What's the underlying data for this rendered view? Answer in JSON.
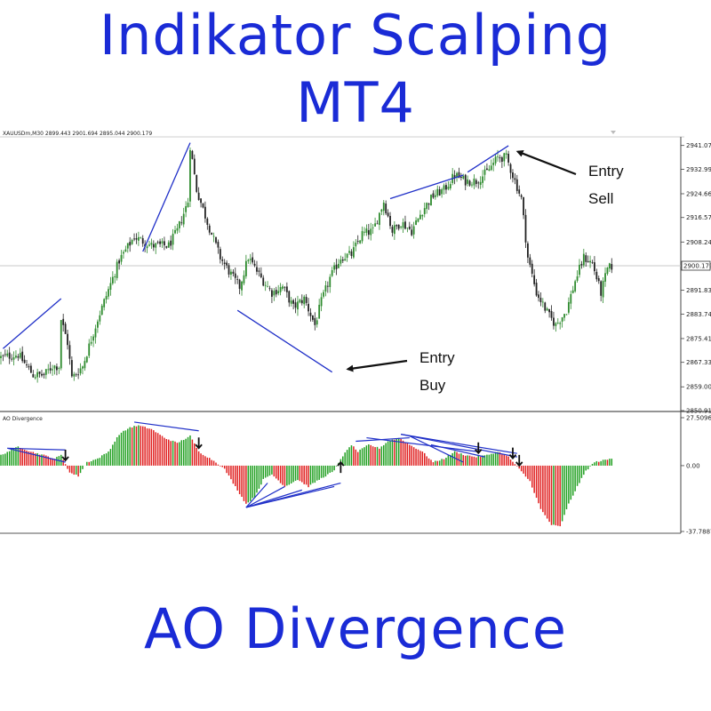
{
  "header": {
    "title_line1": "Indikator Scalping",
    "title_line2": "MT4"
  },
  "footer": {
    "title": "AO Divergence"
  },
  "colors": {
    "title": "#1a2bd6",
    "bull_candle": "#2e8b2e",
    "bear_candle": "#222222",
    "divergence_line": "#2030c8",
    "ao_up": "#22a022",
    "ao_down": "#e02020"
  },
  "chart_data": [
    {
      "type": "candlestick",
      "symbol_header": "XAUUSDm,M30  2899.443 2901.694 2895.044 2900.179",
      "ylim": [
        2850.915,
        2944.0
      ],
      "y_tick_labels": [
        "2941.075",
        "2932.990",
        "2924.660",
        "2916.575",
        "2908.245",
        "2891.830",
        "2883.745",
        "2875.415",
        "2867.330",
        "2859.000",
        "2850.915"
      ],
      "current_price": "2900.179",
      "price_path_anchors": [
        [
          0,
          2869
        ],
        [
          8,
          2870
        ],
        [
          15,
          2863
        ],
        [
          20,
          2863
        ],
        [
          24,
          2866
        ],
        [
          27,
          2866
        ],
        [
          28,
          2882
        ],
        [
          31,
          2874
        ],
        [
          33,
          2862
        ],
        [
          38,
          2866
        ],
        [
          45,
          2882
        ],
        [
          55,
          2902
        ],
        [
          62,
          2910
        ],
        [
          70,
          2907
        ],
        [
          78,
          2907
        ],
        [
          82,
          2912
        ],
        [
          87,
          2922
        ],
        [
          88,
          2941
        ],
        [
          91,
          2926
        ],
        [
          96,
          2915
        ],
        [
          102,
          2903
        ],
        [
          108,
          2896
        ],
        [
          111,
          2893
        ],
        [
          115,
          2903
        ],
        [
          121,
          2896
        ],
        [
          126,
          2891
        ],
        [
          131,
          2893
        ],
        [
          136,
          2886
        ],
        [
          141,
          2889
        ],
        [
          146,
          2880
        ],
        [
          149,
          2888
        ],
        [
          153,
          2896
        ],
        [
          158,
          2903
        ],
        [
          163,
          2904
        ],
        [
          168,
          2911
        ],
        [
          173,
          2912
        ],
        [
          178,
          2922
        ],
        [
          182,
          2912
        ],
        [
          186,
          2915
        ],
        [
          191,
          2912
        ],
        [
          196,
          2919
        ],
        [
          201,
          2924
        ],
        [
          206,
          2926
        ],
        [
          211,
          2931
        ],
        [
          216,
          2929
        ],
        [
          221,
          2929
        ],
        [
          226,
          2932
        ],
        [
          231,
          2937
        ],
        [
          235,
          2937
        ],
        [
          238,
          2931
        ],
        [
          242,
          2923
        ],
        [
          245,
          2903
        ],
        [
          249,
          2891
        ],
        [
          255,
          2883
        ],
        [
          258,
          2880
        ],
        [
          263,
          2885
        ],
        [
          267,
          2895
        ],
        [
          271,
          2903
        ],
        [
          275,
          2901
        ],
        [
          279,
          2891
        ],
        [
          282,
          2899
        ],
        [
          284,
          2900
        ]
      ],
      "divergence_lines": [
        {
          "x": [
            1,
            28
          ],
          "y": [
            2872,
            2889
          ]
        },
        {
          "x": [
            66,
            88
          ],
          "y": [
            2905,
            2942
          ]
        },
        {
          "x": [
            110,
            154
          ],
          "y": [
            2885,
            2864
          ]
        },
        {
          "x": [
            181,
            215
          ],
          "y": [
            2923,
            2931
          ]
        },
        {
          "x": [
            217,
            236
          ],
          "y": [
            2932,
            2941
          ]
        }
      ],
      "annotations": [
        {
          "line1": "Entry",
          "line2": "Sell",
          "target_bar": 237,
          "target_price": 2939
        },
        {
          "line1": "Entry",
          "line2": "Buy",
          "target_bar": 158,
          "target_price": 2865
        }
      ]
    },
    {
      "type": "histogram",
      "indicator_name": "AO Divergence",
      "ylim": [
        -37.7887,
        27.5096
      ],
      "y_tick_labels": [
        "27.5096",
        "0.00",
        "-37.7887"
      ],
      "ao_anchors": [
        [
          0,
          6
        ],
        [
          8,
          11
        ],
        [
          14,
          8
        ],
        [
          20,
          6
        ],
        [
          25,
          4
        ],
        [
          28,
          6
        ],
        [
          32,
          -4
        ],
        [
          36,
          -6
        ],
        [
          40,
          2
        ],
        [
          45,
          4
        ],
        [
          50,
          8
        ],
        [
          55,
          18
        ],
        [
          60,
          22
        ],
        [
          64,
          23
        ],
        [
          70,
          21
        ],
        [
          76,
          16
        ],
        [
          82,
          13
        ],
        [
          88,
          17
        ],
        [
          92,
          8
        ],
        [
          100,
          2
        ],
        [
          104,
          -2
        ],
        [
          110,
          -14
        ],
        [
          114,
          -22
        ],
        [
          118,
          -18
        ],
        [
          122,
          -8
        ],
        [
          126,
          -5
        ],
        [
          132,
          -12
        ],
        [
          138,
          -8
        ],
        [
          143,
          -12
        ],
        [
          148,
          -8
        ],
        [
          155,
          -3
        ],
        [
          158,
          4
        ],
        [
          163,
          12
        ],
        [
          166,
          8
        ],
        [
          171,
          12
        ],
        [
          176,
          10
        ],
        [
          180,
          14
        ],
        [
          185,
          16
        ],
        [
          190,
          12
        ],
        [
          196,
          8
        ],
        [
          201,
          2
        ],
        [
          206,
          4
        ],
        [
          211,
          8
        ],
        [
          216,
          6
        ],
        [
          221,
          5
        ],
        [
          226,
          6
        ],
        [
          231,
          8
        ],
        [
          236,
          5
        ],
        [
          241,
          -2
        ],
        [
          246,
          -9
        ],
        [
          251,
          -25
        ],
        [
          256,
          -34
        ],
        [
          260,
          -35
        ],
        [
          264,
          -22
        ],
        [
          268,
          -12
        ],
        [
          272,
          -3
        ],
        [
          276,
          2
        ],
        [
          280,
          3
        ],
        [
          284,
          4
        ]
      ],
      "divergence_lines": [
        {
          "x": [
            3,
            30
          ],
          "y": [
            10,
            9
          ]
        },
        {
          "x": [
            3,
            30
          ],
          "y": [
            10,
            2
          ]
        },
        {
          "x": [
            62,
            92
          ],
          "y": [
            25,
            20
          ]
        },
        {
          "x": [
            114,
            158
          ],
          "y": [
            -24,
            -10
          ]
        },
        {
          "x": [
            114,
            155
          ],
          "y": [
            -24,
            -12
          ]
        },
        {
          "x": [
            114,
            140
          ],
          "y": [
            -24,
            -14
          ]
        },
        {
          "x": [
            114,
            132
          ],
          "y": [
            -24,
            -12
          ]
        },
        {
          "x": [
            114,
            124
          ],
          "y": [
            -24,
            -10
          ]
        },
        {
          "x": [
            165,
            190
          ],
          "y": [
            14,
            16
          ]
        },
        {
          "x": [
            170,
            222
          ],
          "y": [
            16,
            8
          ]
        },
        {
          "x": [
            186,
            240
          ],
          "y": [
            18,
            7
          ]
        },
        {
          "x": [
            186,
            240
          ],
          "y": [
            18,
            5
          ]
        },
        {
          "x": [
            190,
            215
          ],
          "y": [
            17,
            2
          ]
        },
        {
          "x": [
            200,
            225
          ],
          "y": [
            12,
            5
          ]
        }
      ],
      "arrows": [
        {
          "x": 30,
          "direction": "down"
        },
        {
          "x": 92,
          "direction": "down"
        },
        {
          "x": 158,
          "direction": "up"
        },
        {
          "x": 222,
          "direction": "down"
        },
        {
          "x": 238,
          "direction": "down"
        },
        {
          "x": 241,
          "direction": "down"
        }
      ]
    }
  ]
}
